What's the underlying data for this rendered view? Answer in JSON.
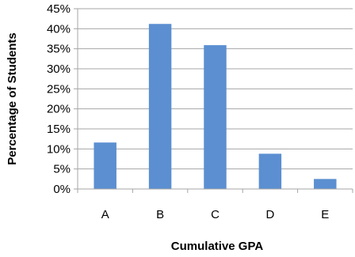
{
  "chart_data": {
    "type": "bar",
    "title": "",
    "xlabel": "Cumulative GPA",
    "ylabel": "Percentage of Students",
    "categories": [
      "A",
      "B",
      "C",
      "D",
      "E"
    ],
    "values": [
      11.6,
      41.2,
      35.9,
      8.8,
      2.5
    ],
    "ylim": [
      0,
      45
    ],
    "y_ticks": [
      0,
      5,
      10,
      15,
      20,
      25,
      30,
      35,
      40,
      45
    ],
    "y_tick_labels": [
      "0%",
      "5%",
      "10%",
      "15%",
      "20%",
      "25%",
      "30%",
      "35%",
      "40%",
      "45%"
    ],
    "grid": true,
    "legend": "none",
    "bar_color": "#5b8fd1",
    "gridline_color": "#a6a6a6"
  }
}
